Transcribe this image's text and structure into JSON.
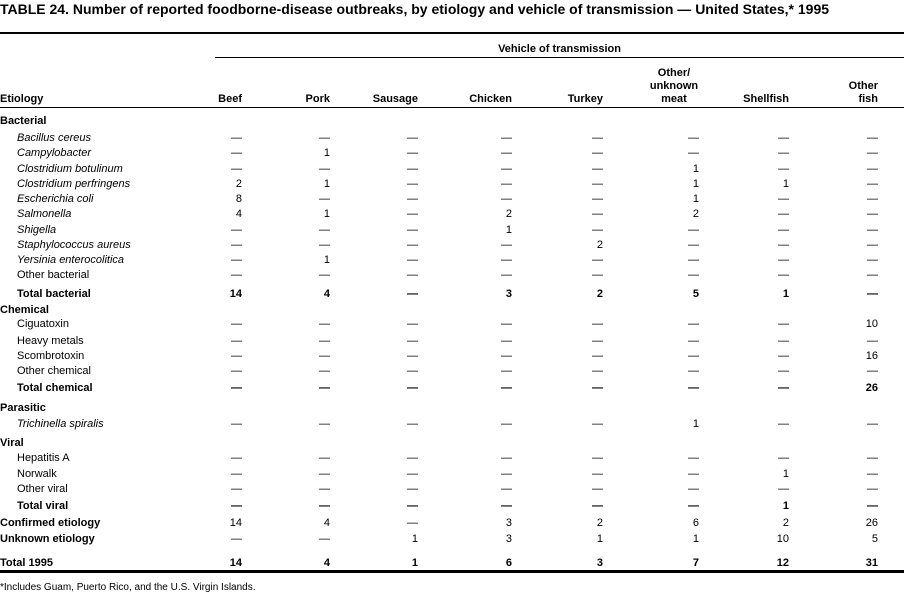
{
  "title": "TABLE 24. Number of reported foodborne-disease outbreaks, by etiology and vehicle of transmission — United States,* 1995",
  "spanner": "Vehicle of transmission",
  "stub_header": "Etiology",
  "columns": [
    "Beef",
    "Pork",
    "Sausage",
    "Chicken",
    "Turkey",
    "Other/\nunknown\nmeat",
    "Shellfish",
    "Other\nfish"
  ],
  "rows": [
    {
      "label": "Bacterial",
      "type": "group",
      "values": []
    },
    {
      "label": "Bacillus cereus",
      "type": "italic",
      "values": [
        "—",
        "—",
        "—",
        "—",
        "—",
        "—",
        "—",
        "—"
      ]
    },
    {
      "label": "Campylobacter",
      "type": "italic",
      "values": [
        "—",
        "1",
        "—",
        "—",
        "—",
        "—",
        "—",
        "—"
      ]
    },
    {
      "label": "Clostridium botulinum",
      "type": "italic",
      "values": [
        "—",
        "—",
        "—",
        "—",
        "—",
        "1",
        "—",
        "—"
      ]
    },
    {
      "label": "Clostridium perfringens",
      "type": "italic",
      "values": [
        "2",
        "1",
        "—",
        "—",
        "—",
        "1",
        "1",
        "—"
      ]
    },
    {
      "label": "Escherichia coli",
      "type": "italic",
      "values": [
        "8",
        "—",
        "—",
        "—",
        "—",
        "1",
        "—",
        "—"
      ]
    },
    {
      "label": "Salmonella",
      "type": "italic",
      "values": [
        "4",
        "1",
        "—",
        "2",
        "—",
        "2",
        "—",
        "—"
      ]
    },
    {
      "label": "Shigella",
      "type": "italic",
      "values": [
        "—",
        "—",
        "—",
        "1",
        "—",
        "—",
        "—",
        "—"
      ]
    },
    {
      "label": "Staphylococcus aureus",
      "type": "italic",
      "values": [
        "—",
        "—",
        "—",
        "—",
        "2",
        "—",
        "—",
        "—"
      ]
    },
    {
      "label": "Yersinia enterocolitica",
      "type": "italic",
      "values": [
        "—",
        "1",
        "—",
        "—",
        "—",
        "—",
        "—",
        "—"
      ]
    },
    {
      "label": "Other bacterial",
      "type": "plain",
      "values": [
        "—",
        "—",
        "—",
        "—",
        "—",
        "—",
        "—",
        "—"
      ]
    },
    {
      "label": "Total bacterial",
      "type": "subtotal",
      "values": [
        "14",
        "4",
        "—",
        "3",
        "2",
        "5",
        "1",
        "—"
      ]
    },
    {
      "label": "Chemical",
      "type": "group",
      "values": []
    },
    {
      "label": "Ciguatoxin",
      "type": "plain",
      "values": [
        "—",
        "—",
        "—",
        "—",
        "—",
        "—",
        "—",
        "10"
      ]
    },
    {
      "label": "Heavy metals",
      "type": "plain",
      "values": [
        "—",
        "—",
        "—",
        "—",
        "—",
        "—",
        "—",
        "—"
      ]
    },
    {
      "label": "Scombrotoxin",
      "type": "plain",
      "values": [
        "—",
        "—",
        "—",
        "—",
        "—",
        "—",
        "—",
        "16"
      ]
    },
    {
      "label": "Other chemical",
      "type": "plain",
      "values": [
        "—",
        "—",
        "—",
        "—",
        "—",
        "—",
        "—",
        "—"
      ]
    },
    {
      "label": "Total chemical",
      "type": "subtotal",
      "values": [
        "—",
        "—",
        "—",
        "—",
        "—",
        "—",
        "—",
        "26"
      ]
    },
    {
      "label": "Parasitic",
      "type": "group",
      "values": []
    },
    {
      "label": "Trichinella spiralis",
      "type": "italic",
      "values": [
        "—",
        "—",
        "—",
        "—",
        "—",
        "1",
        "—",
        "—"
      ]
    },
    {
      "label": "Viral",
      "type": "group",
      "values": []
    },
    {
      "label": "Hepatitis A",
      "type": "plain",
      "values": [
        "—",
        "—",
        "—",
        "—",
        "—",
        "—",
        "—",
        "—"
      ]
    },
    {
      "label": "Norwalk",
      "type": "plain",
      "values": [
        "—",
        "—",
        "—",
        "—",
        "—",
        "—",
        "1",
        "—"
      ]
    },
    {
      "label": "Other viral",
      "type": "plain",
      "values": [
        "—",
        "—",
        "—",
        "—",
        "—",
        "—",
        "—",
        "—"
      ]
    },
    {
      "label": "Total viral",
      "type": "subtotal",
      "values": [
        "—",
        "—",
        "—",
        "—",
        "—",
        "—",
        "1",
        "—"
      ]
    },
    {
      "label": "Confirmed etiology",
      "type": "summary",
      "values": [
        "14",
        "4",
        "—",
        "3",
        "2",
        "6",
        "2",
        "26"
      ]
    },
    {
      "label": "Unknown etiology",
      "type": "summary",
      "values": [
        "—",
        "—",
        "1",
        "3",
        "1",
        "1",
        "10",
        "5"
      ]
    },
    {
      "label": "Total 1995",
      "type": "total",
      "values": [
        "14",
        "4",
        "1",
        "6",
        "3",
        "7",
        "12",
        "31"
      ]
    }
  ],
  "footnote": "*Includes Guam, Puerto Rico, and the U.S. Virgin Islands."
}
